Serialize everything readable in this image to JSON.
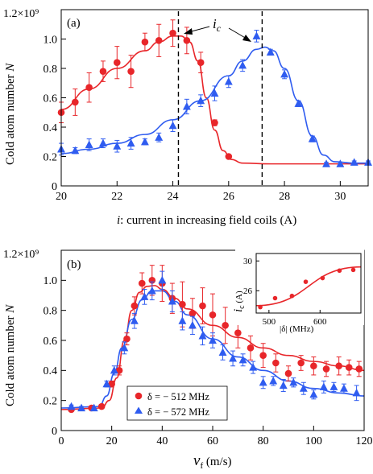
{
  "colors": {
    "red": "#e8262a",
    "blue": "#2f5cf0",
    "axis": "#000000",
    "dash": "#000000"
  },
  "chart_data": [
    {
      "id": "a",
      "type": "scatter",
      "panel_label": "(a)",
      "xlabel_var": "i",
      "xlabel_rest": ": current in increasing field coils (A)",
      "ylabel_var": "N",
      "ylabel_prefix": "Cold atom number ",
      "y_exponent_label": "1.2×10⁹",
      "xlim": [
        20,
        31
      ],
      "ylim": [
        0,
        1.2
      ],
      "xticks": [
        20,
        22,
        24,
        26,
        28,
        30
      ],
      "xticklabels": [
        "20",
        "22",
        "24",
        "26",
        "28",
        "30"
      ],
      "yticks": [
        0,
        0.2,
        0.4,
        0.6,
        0.8,
        1.0
      ],
      "yticklabels": [
        "0",
        "0.2",
        "0.4",
        "0.6",
        "0.8",
        "1.0"
      ],
      "annotation": {
        "text_var": "i",
        "text_sub": "c",
        "x": 25.6,
        "y": 1.05
      },
      "vlines": [
        24.2,
        27.2
      ],
      "series": [
        {
          "color": "red",
          "marker": "circle",
          "points": [
            [
              20.0,
              0.5,
              0.07
            ],
            [
              20.5,
              0.57,
              0.09
            ],
            [
              21.0,
              0.67,
              0.1
            ],
            [
              21.5,
              0.78,
              0.07
            ],
            [
              22.0,
              0.84,
              0.11
            ],
            [
              22.5,
              0.78,
              0.11
            ],
            [
              23.0,
              0.98,
              0.06
            ],
            [
              23.5,
              0.99,
              0.11
            ],
            [
              24.0,
              1.04,
              0.09
            ],
            [
              24.5,
              0.99,
              0.09
            ],
            [
              25.0,
              0.84,
              0.07
            ],
            [
              25.5,
              0.43,
              0.02
            ],
            [
              26.0,
              0.2,
              0.01
            ]
          ],
          "fit": [
            [
              20.0,
              0.52
            ],
            [
              21.0,
              0.66
            ],
            [
              22.0,
              0.8
            ],
            [
              23.0,
              0.92
            ],
            [
              23.5,
              0.98
            ],
            [
              24.0,
              1.02
            ],
            [
              24.3,
              1.02
            ],
            [
              24.6,
              0.98
            ],
            [
              24.9,
              0.85
            ],
            [
              25.2,
              0.6
            ],
            [
              25.5,
              0.38
            ],
            [
              25.8,
              0.24
            ],
            [
              26.1,
              0.18
            ],
            [
              26.5,
              0.155
            ],
            [
              27.5,
              0.15
            ],
            [
              31.0,
              0.15
            ]
          ]
        },
        {
          "color": "blue",
          "marker": "triangle",
          "points": [
            [
              20.0,
              0.25,
              0.04
            ],
            [
              20.5,
              0.24,
              0.02
            ],
            [
              21.0,
              0.28,
              0.04
            ],
            [
              21.5,
              0.29,
              0.03
            ],
            [
              22.0,
              0.27,
              0.04
            ],
            [
              22.5,
              0.29,
              0.04
            ],
            [
              23.0,
              0.3,
              0.02
            ],
            [
              23.5,
              0.33,
              0.03
            ],
            [
              24.0,
              0.41,
              0.04
            ],
            [
              24.5,
              0.54,
              0.05
            ],
            [
              25.0,
              0.58,
              0.04
            ],
            [
              25.5,
              0.63,
              0.05
            ],
            [
              26.0,
              0.71,
              0.04
            ],
            [
              26.5,
              0.82,
              0.04
            ],
            [
              27.0,
              1.02,
              0.04
            ],
            [
              27.5,
              0.91,
              0.02
            ],
            [
              28.0,
              0.76,
              0.03
            ],
            [
              28.5,
              0.56,
              0.02
            ],
            [
              29.0,
              0.32,
              0.02
            ],
            [
              29.5,
              0.15,
              0.01
            ],
            [
              30.0,
              0.15,
              0.01
            ],
            [
              30.5,
              0.16,
              0.01
            ],
            [
              31.0,
              0.16,
              0.01
            ]
          ],
          "fit": [
            [
              20.0,
              0.22
            ],
            [
              21.0,
              0.25
            ],
            [
              22.0,
              0.29
            ],
            [
              23.0,
              0.35
            ],
            [
              24.0,
              0.45
            ],
            [
              25.0,
              0.58
            ],
            [
              26.0,
              0.75
            ],
            [
              26.5,
              0.85
            ],
            [
              27.0,
              0.93
            ],
            [
              27.3,
              0.945
            ],
            [
              27.6,
              0.92
            ],
            [
              28.0,
              0.8
            ],
            [
              28.5,
              0.58
            ],
            [
              29.0,
              0.34
            ],
            [
              29.4,
              0.21
            ],
            [
              29.8,
              0.165
            ],
            [
              30.5,
              0.155
            ],
            [
              31.0,
              0.155
            ]
          ]
        }
      ]
    },
    {
      "id": "b",
      "type": "scatter",
      "panel_label": "(b)",
      "xlabel_var": "v",
      "xlabel_sub": "f",
      "xlabel_rest": " (m/s)",
      "ylabel_var": "N",
      "ylabel_prefix": "Cold atom number ",
      "y_exponent_label": "1.2×10⁹",
      "xlim": [
        0,
        120
      ],
      "ylim": [
        0,
        1.2
      ],
      "xticks": [
        0,
        20,
        40,
        60,
        80,
        100,
        120
      ],
      "xticklabels": [
        "0",
        "20",
        "40",
        "60",
        "80",
        "100",
        "120"
      ],
      "yticks": [
        0,
        0.2,
        0.4,
        0.6,
        0.8,
        1.0
      ],
      "yticklabels": [
        "0",
        "0.2",
        "0.4",
        "0.6",
        "0.8",
        "1.0"
      ],
      "legend": {
        "position": "bottom-left",
        "entries": [
          {
            "color": "red",
            "marker": "circle",
            "label": "δ = − 512 MHz"
          },
          {
            "color": "blue",
            "marker": "triangle",
            "label": "δ = − 572 MHz"
          }
        ]
      },
      "series": [
        {
          "color": "red",
          "marker": "circle",
          "name": "δ = − 512 MHz",
          "points": [
            [
              4,
              0.14,
              0.01
            ],
            [
              12,
              0.15,
              0.01
            ],
            [
              16,
              0.16,
              0.01
            ],
            [
              20,
              0.31,
              0.02
            ],
            [
              23,
              0.4,
              0.03
            ],
            [
              26,
              0.61,
              0.04
            ],
            [
              29,
              0.83,
              0.06
            ],
            [
              32,
              0.98,
              0.07
            ],
            [
              36,
              1.0,
              0.1
            ],
            [
              40,
              0.98,
              0.12
            ],
            [
              44,
              0.88,
              0.1
            ],
            [
              48,
              0.84,
              0.15
            ],
            [
              52,
              0.78,
              0.1
            ],
            [
              56,
              0.83,
              0.12
            ],
            [
              60,
              0.77,
              0.14
            ],
            [
              65,
              0.7,
              0.12
            ],
            [
              70,
              0.65,
              0.1
            ],
            [
              75,
              0.55,
              0.08
            ],
            [
              80,
              0.5,
              0.08
            ],
            [
              85,
              0.45,
              0.06
            ],
            [
              90,
              0.38,
              0.05
            ],
            [
              95,
              0.45,
              0.05
            ],
            [
              100,
              0.43,
              0.06
            ],
            [
              105,
              0.41,
              0.05
            ],
            [
              110,
              0.43,
              0.06
            ],
            [
              114,
              0.42,
              0.05
            ],
            [
              118,
              0.41,
              0.05
            ]
          ],
          "fit": [
            [
              0,
              0.14
            ],
            [
              16,
              0.15
            ],
            [
              19,
              0.2
            ],
            [
              22,
              0.35
            ],
            [
              25,
              0.6
            ],
            [
              28,
              0.8
            ],
            [
              31,
              0.92
            ],
            [
              34,
              0.96
            ],
            [
              37,
              0.965
            ],
            [
              40,
              0.94
            ],
            [
              45,
              0.88
            ],
            [
              50,
              0.81
            ],
            [
              60,
              0.7
            ],
            [
              70,
              0.62
            ],
            [
              80,
              0.55
            ],
            [
              90,
              0.5
            ],
            [
              100,
              0.46
            ],
            [
              110,
              0.43
            ],
            [
              120,
              0.4
            ]
          ]
        },
        {
          "color": "blue",
          "marker": "triangle",
          "name": "δ = − 572 MHz",
          "points": [
            [
              4,
              0.16,
              0.01
            ],
            [
              8,
              0.15,
              0.01
            ],
            [
              13,
              0.15,
              0.01
            ],
            [
              18,
              0.31,
              0.02
            ],
            [
              21,
              0.4,
              0.03
            ],
            [
              25,
              0.55,
              0.04
            ],
            [
              29,
              0.73,
              0.05
            ],
            [
              33,
              0.89,
              0.05
            ],
            [
              36,
              0.93,
              0.06
            ],
            [
              40,
              1.0,
              0.06
            ],
            [
              44,
              0.86,
              0.07
            ],
            [
              48,
              0.73,
              0.06
            ],
            [
              52,
              0.7,
              0.06
            ],
            [
              56,
              0.63,
              0.06
            ],
            [
              60,
              0.6,
              0.05
            ],
            [
              64,
              0.52,
              0.05
            ],
            [
              68,
              0.48,
              0.05
            ],
            [
              72,
              0.47,
              0.04
            ],
            [
              76,
              0.42,
              0.04
            ],
            [
              80,
              0.32,
              0.04
            ],
            [
              84,
              0.33,
              0.03
            ],
            [
              88,
              0.3,
              0.04
            ],
            [
              92,
              0.32,
              0.03
            ],
            [
              96,
              0.28,
              0.04
            ],
            [
              100,
              0.24,
              0.03
            ],
            [
              104,
              0.29,
              0.04
            ],
            [
              108,
              0.29,
              0.03
            ],
            [
              112,
              0.28,
              0.03
            ],
            [
              117,
              0.25,
              0.05
            ]
          ],
          "fit": [
            [
              0,
              0.15
            ],
            [
              15,
              0.16
            ],
            [
              18,
              0.23
            ],
            [
              21,
              0.38
            ],
            [
              24,
              0.55
            ],
            [
              28,
              0.74
            ],
            [
              32,
              0.87
            ],
            [
              36,
              0.93
            ],
            [
              40,
              0.93
            ],
            [
              45,
              0.86
            ],
            [
              50,
              0.77
            ],
            [
              60,
              0.61
            ],
            [
              70,
              0.49
            ],
            [
              80,
              0.4
            ],
            [
              90,
              0.33
            ],
            [
              100,
              0.28
            ],
            [
              110,
              0.25
            ],
            [
              120,
              0.23
            ]
          ]
        }
      ]
    },
    {
      "id": "inset",
      "type": "scatter",
      "xlabel": "|δ| (MHz)",
      "ylabel_var": "i",
      "ylabel_sub": "c",
      "ylabel_rest": " (A)",
      "xlim": [
        475,
        680
      ],
      "ylim": [
        23,
        31
      ],
      "xticks": [
        500,
        600
      ],
      "xticklabels": [
        "500",
        "600"
      ],
      "yticks": [
        26,
        30
      ],
      "yticklabels": [
        "26",
        "30"
      ],
      "series": [
        {
          "color": "red",
          "marker": "circle",
          "points": [
            [
              483,
              23.8
            ],
            [
              512,
              25.0
            ],
            [
              545,
              25.3
            ],
            [
              572,
              27.2
            ],
            [
              605,
              27.7
            ],
            [
              638,
              28.7
            ],
            [
              665,
              28.8
            ]
          ],
          "fit": [
            [
              475,
              24.0
            ],
            [
              680,
              29.2
            ]
          ]
        }
      ]
    }
  ]
}
